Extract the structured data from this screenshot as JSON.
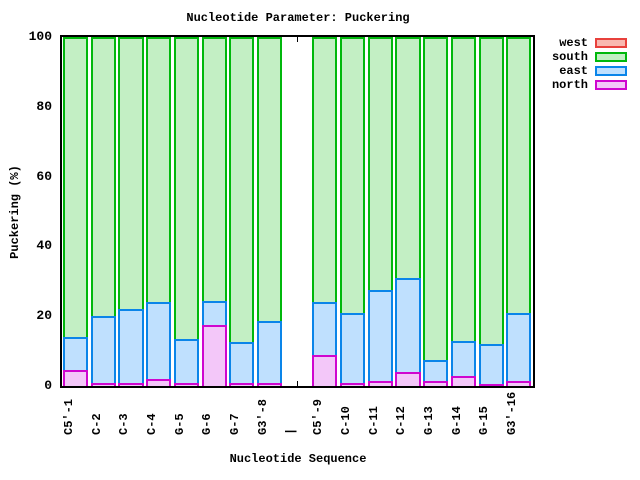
{
  "chart_data": {
    "type": "bar",
    "stacked": true,
    "title": "Nucleotide Parameter: Puckering",
    "xlabel": "Nucleotide Sequence",
    "ylabel": "Puckering (%)",
    "ylim": [
      0,
      100
    ],
    "yticks": [
      0,
      20,
      40,
      60,
      80,
      100
    ],
    "grid": false,
    "legend_position": "outside-right-top",
    "legend_order": [
      "west",
      "south",
      "east",
      "north"
    ],
    "stack_order": [
      "north",
      "east",
      "south",
      "west"
    ],
    "separator_label": "|",
    "categories": [
      "C5'-1",
      "C-2",
      "C-3",
      "C-4",
      "G-5",
      "G-6",
      "G-7",
      "G3'-8",
      "|",
      "C5'-9",
      "C-10",
      "C-11",
      "C-12",
      "G-13",
      "G-14",
      "G-15",
      "G3'-16"
    ],
    "series": [
      {
        "name": "west",
        "stroke": "#e8413c",
        "fill": "#f9b8b0",
        "values": [
          0,
          0,
          0,
          0,
          0,
          0,
          0,
          0,
          null,
          0,
          0,
          0,
          0,
          0,
          0,
          0,
          0
        ]
      },
      {
        "name": "south",
        "stroke": "#00b80c",
        "fill": "#c3efc4",
        "values": [
          86,
          80,
          78,
          76,
          86.5,
          75.5,
          87.5,
          81.5,
          null,
          76,
          79,
          72.5,
          69,
          92.5,
          87,
          88,
          79
        ]
      },
      {
        "name": "east",
        "stroke": "#0a85e9",
        "fill": "#bfe0fe",
        "values": [
          9.5,
          19,
          21,
          22,
          12.5,
          7,
          11.5,
          17.5,
          null,
          15,
          20,
          26,
          27,
          6,
          10,
          11.5,
          19.5
        ]
      },
      {
        "name": "north",
        "stroke": "#cf06cf",
        "fill": "#f3c7f9",
        "values": [
          4.5,
          1,
          1,
          2,
          1,
          17.5,
          1,
          1,
          null,
          9,
          1,
          1.5,
          4,
          1.5,
          3,
          0.5,
          1.5
        ]
      }
    ]
  }
}
